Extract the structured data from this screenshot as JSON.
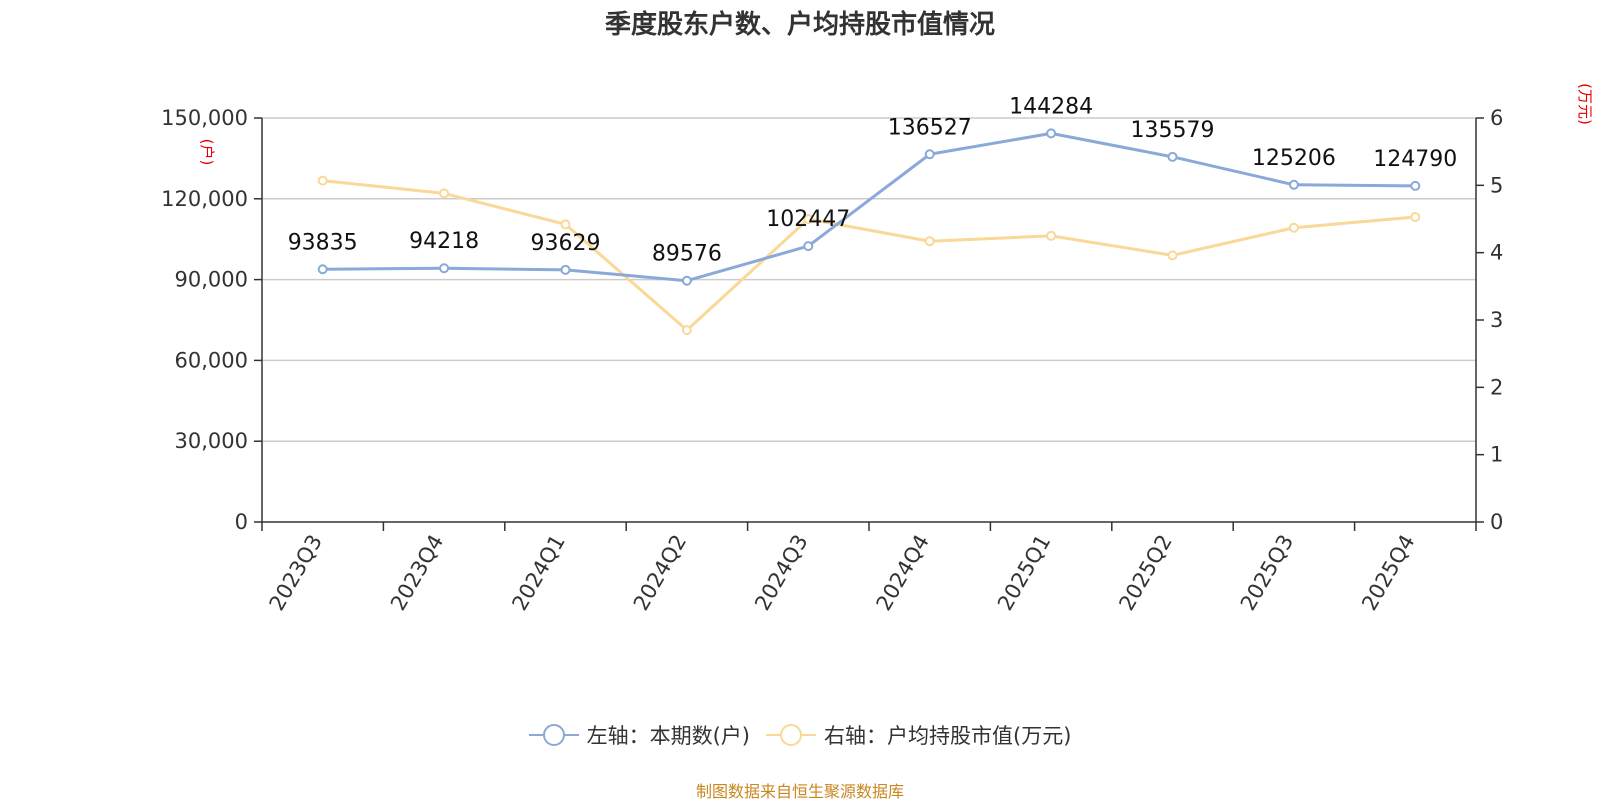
{
  "chart_data": {
    "type": "line",
    "title": "季度股东户数、户均持股市值情况",
    "categories": [
      "2023Q3",
      "2023Q4",
      "2024Q1",
      "2024Q2",
      "2024Q3",
      "2024Q4",
      "2025Q1",
      "2025Q2",
      "2025Q3",
      "2025Q4"
    ],
    "series": [
      {
        "name": "左轴：本期数(户)",
        "axis": "left",
        "color": "#8aa9d8",
        "values": [
          93835,
          94218,
          93629,
          89576,
          102447,
          136527,
          144284,
          135579,
          125206,
          124790
        ],
        "labels": [
          "93835",
          "94218",
          "93629",
          "89576",
          "102447",
          "136527",
          "144284",
          "135579",
          "125206",
          "124790"
        ]
      },
      {
        "name": "右轴：户均持股市值(万元)",
        "axis": "right",
        "color": "#f9d898",
        "values": [
          5.07,
          4.88,
          4.42,
          2.85,
          4.5,
          4.17,
          4.25,
          3.96,
          4.37,
          4.53
        ]
      }
    ],
    "y_left": {
      "label": "(户)",
      "min": 0,
      "max": 150000,
      "ticks": [
        0,
        30000,
        60000,
        90000,
        120000,
        150000
      ],
      "tick_labels": [
        "0",
        "30,000",
        "60,000",
        "90,000",
        "120,000",
        "150,000"
      ]
    },
    "y_right": {
      "label": "(万元)",
      "min": 0,
      "max": 6,
      "ticks": [
        0,
        1,
        2,
        3,
        4,
        5,
        6
      ],
      "tick_labels": [
        "0",
        "1",
        "2",
        "3",
        "4",
        "5",
        "6"
      ]
    },
    "grid": true,
    "legend_position": "bottom"
  },
  "source_note": "制图数据来自恒生聚源数据库",
  "colors": {
    "axis_label": "#e60000",
    "grid": "#cccccc",
    "axis": "#333333"
  }
}
